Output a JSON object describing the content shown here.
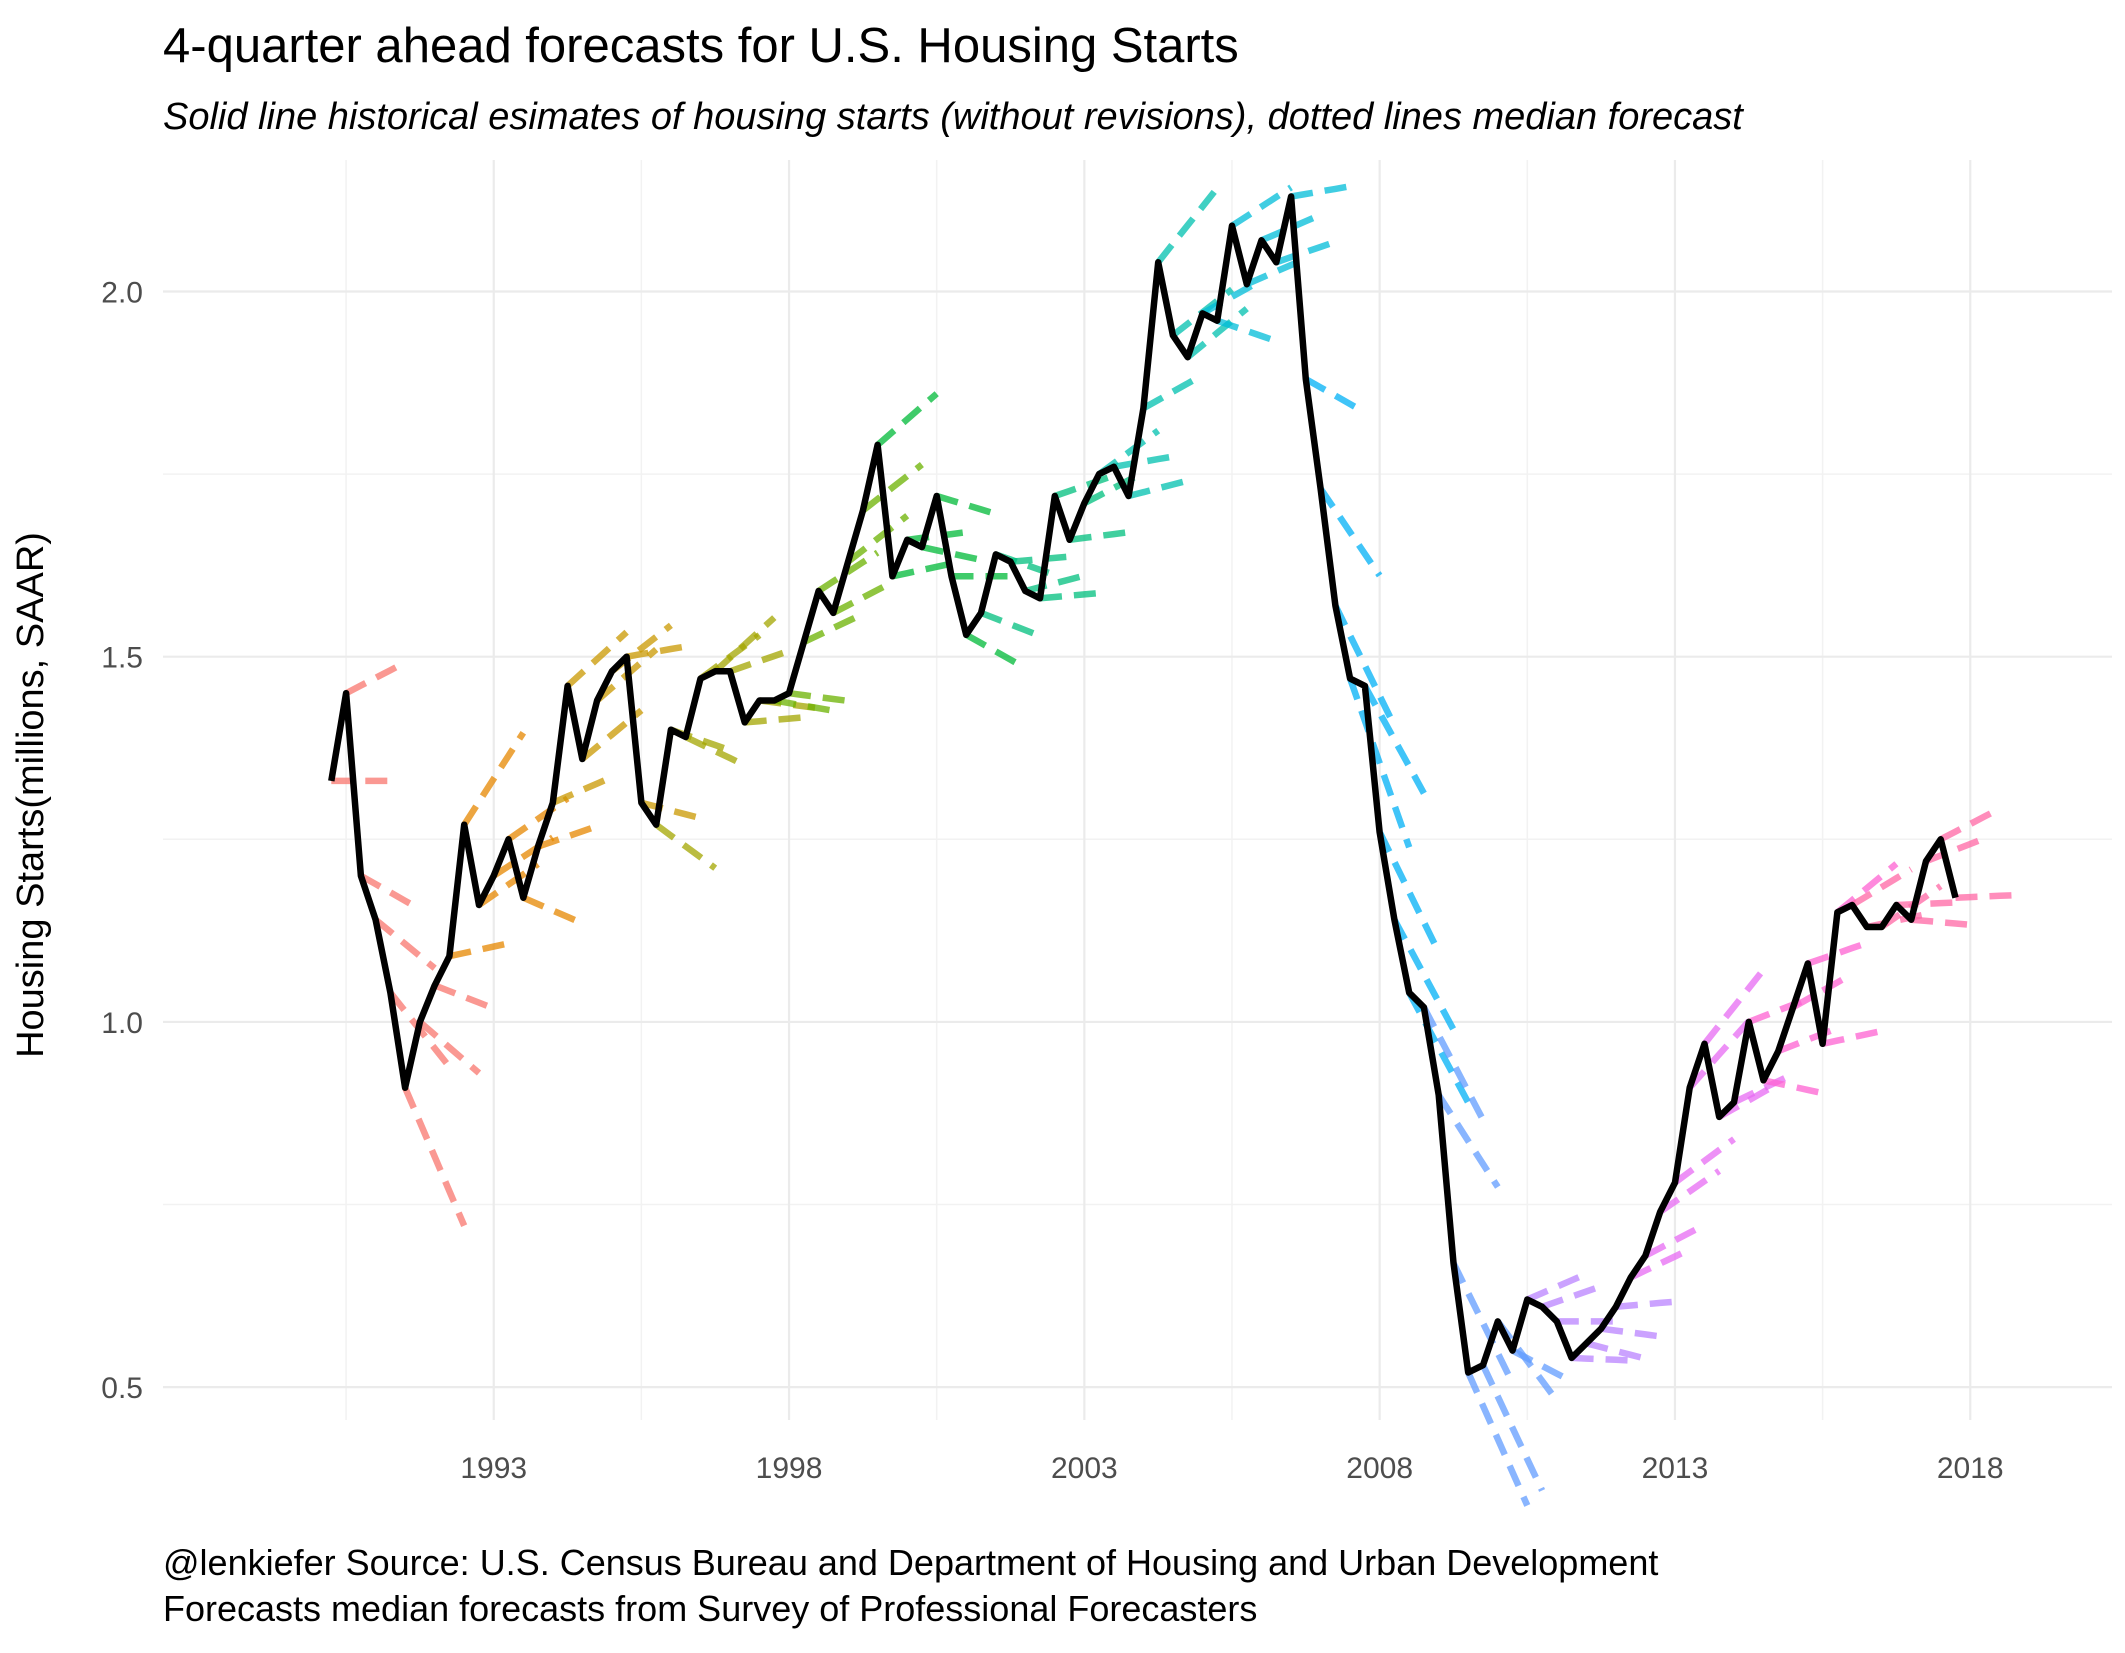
{
  "chart_data": {
    "type": "line",
    "title": "4-quarter ahead forecasts for U.S. Housing Starts",
    "subtitle": "Solid line historical esimates of housing starts (without revisions), dotted lines median forecast",
    "xlabel": "",
    "ylabel": "Housing Starts(millions, SAAR)",
    "caption": [
      "@lenkiefer Source: U.S. Census Bureau and Department of Housing and Urban Development",
      "Forecasts median forecasts from Survey of Professional Forecasters"
    ],
    "xlim": [
      1987.4,
      2020.4
    ],
    "ylim": [
      0.455,
      2.18
    ],
    "x_ticks": [
      {
        "value": 1993,
        "label": "1993"
      },
      {
        "value": 1998,
        "label": "1998"
      },
      {
        "value": 2003,
        "label": "2003"
      },
      {
        "value": 2008,
        "label": "2008"
      },
      {
        "value": 2013,
        "label": "2013"
      },
      {
        "value": 2018,
        "label": "2018"
      }
    ],
    "y_ticks": [
      {
        "value": 0.5,
        "label": "0.5"
      },
      {
        "value": 1.0,
        "label": "1.0"
      },
      {
        "value": 1.5,
        "label": "1.5"
      },
      {
        "value": 2.0,
        "label": "2.0"
      }
    ],
    "grid": true,
    "legend": "none",
    "actual_color": "#000000",
    "history": {
      "start": 1990.25,
      "step": 0.25,
      "values": [
        1.33,
        1.45,
        1.2,
        1.14,
        1.04,
        0.91,
        1.0,
        1.05,
        1.09,
        1.27,
        1.16,
        1.2,
        1.25,
        1.17,
        1.24,
        1.3,
        1.46,
        1.36,
        1.44,
        1.48,
        1.5,
        1.3,
        1.27,
        1.4,
        1.39,
        1.47,
        1.48,
        1.48,
        1.41,
        1.44,
        1.44,
        1.45,
        1.52,
        1.59,
        1.56,
        1.63,
        1.7,
        1.79,
        1.61,
        1.66,
        1.65,
        1.72,
        1.61,
        1.53,
        1.56,
        1.64,
        1.63,
        1.59,
        1.58,
        1.72,
        1.66,
        1.71,
        1.75,
        1.76,
        1.72,
        1.84,
        2.04,
        1.94,
        1.91,
        1.97,
        1.96,
        2.09,
        2.01,
        2.07,
        2.04,
        2.13,
        1.88,
        1.73,
        1.57,
        1.47,
        1.46,
        1.26,
        1.14,
        1.04,
        1.02,
        0.9,
        0.67,
        0.52,
        0.53,
        0.59,
        0.55,
        0.62,
        0.61,
        0.59,
        0.54,
        0.56,
        0.58,
        0.61,
        0.65,
        0.68,
        0.74,
        0.78,
        0.91,
        0.97,
        0.87,
        0.89,
        1.0,
        0.92,
        0.96,
        1.02,
        1.08,
        0.97,
        1.15,
        1.16,
        1.13,
        1.13,
        1.16,
        1.14,
        1.22,
        1.25,
        1.17
      ]
    },
    "forecast_colors": [
      "#f8766d",
      "#e58700",
      "#c99800",
      "#a3a500",
      "#6bb100",
      "#00ba38",
      "#00bf7d",
      "#00c0af",
      "#00bcd8",
      "#00b0f6",
      "#619cff",
      "#b983ff",
      "#e76bf3",
      "#fd61d1",
      "#ff67a4"
    ]
  }
}
